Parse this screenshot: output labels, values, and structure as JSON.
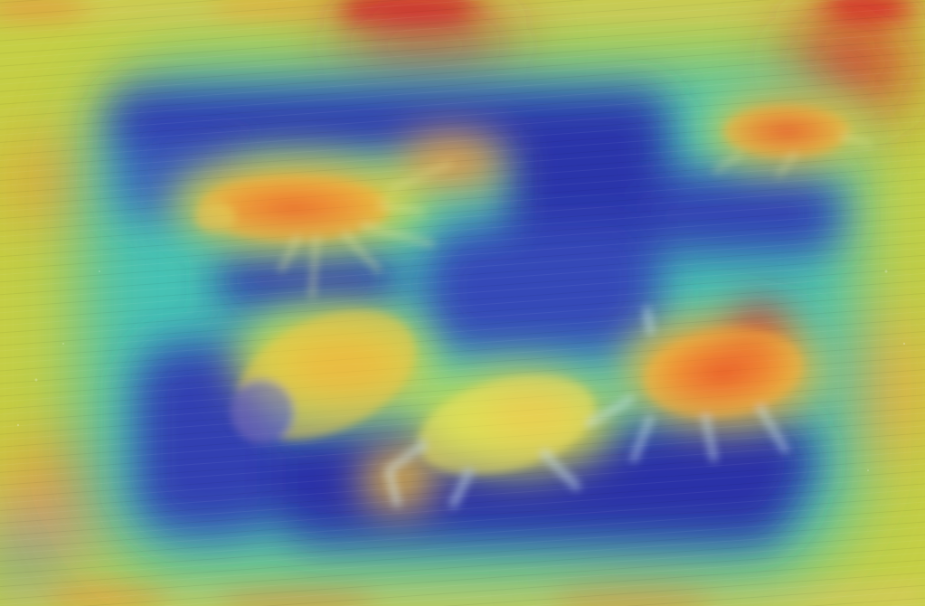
{
  "image": {
    "kind": "heatmap-overlay",
    "subject": "aphid-icon",
    "colormap": {
      "low": "#2c2ea8",
      "mid_low": "#35b8c8",
      "mid": "#c9e04a",
      "mid_high": "#f2a838",
      "high": "#d8262a"
    },
    "base_tone": "#c8d048"
  }
}
